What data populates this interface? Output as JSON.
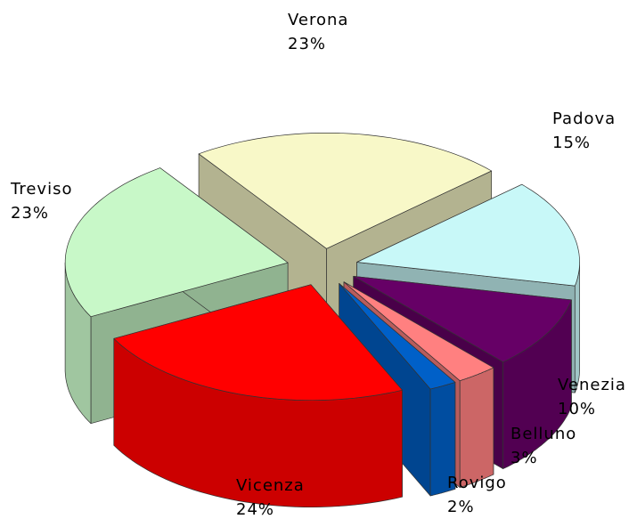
{
  "chart_data": {
    "type": "pie3d",
    "categories": [
      "Verona",
      "Padova",
      "Venezia",
      "Belluno",
      "Rovigo",
      "Vicenza",
      "Treviso"
    ],
    "values": [
      23,
      15,
      10,
      3,
      2,
      24,
      23
    ],
    "value_labels": [
      "23%",
      "15%",
      "10%",
      "3%",
      "2%",
      "24%",
      "23%"
    ],
    "colors": [
      "#f8f8c8",
      "#c8f8f8",
      "#660066",
      "#ff8080",
      "#0060c8",
      "#ff0000",
      "#c8f8c8"
    ]
  }
}
